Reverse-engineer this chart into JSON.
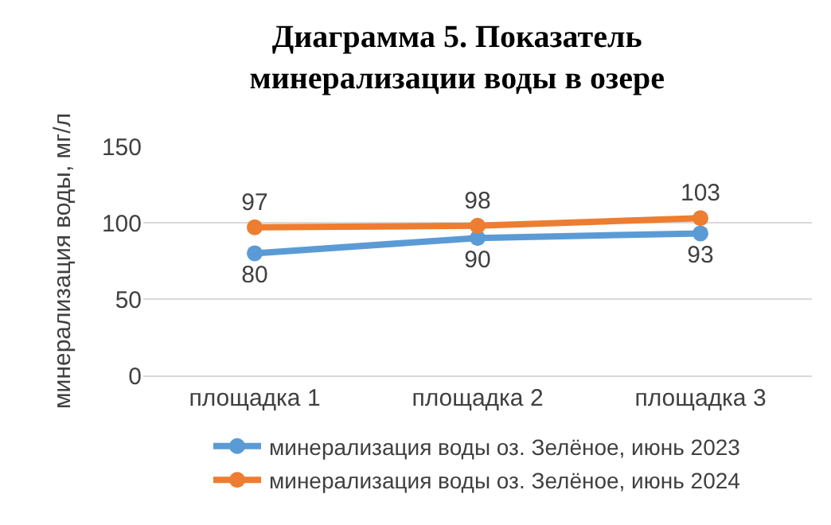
{
  "chart_data": {
    "type": "line",
    "title": "Диаграмма 5. Показатель\nминерализации воды в озере",
    "ylabel": "минерализация воды, мг/л",
    "categories": [
      "площадка 1",
      "площадка 2",
      "площадка 3"
    ],
    "series": [
      {
        "name": "минерализация воды оз. Зелёное, июнь 2023",
        "color": "#5b9bd5",
        "values": [
          80,
          90,
          93
        ]
      },
      {
        "name": "минерализация воды оз. Зелёное, июнь 2024",
        "color": "#ed7d31",
        "values": [
          97,
          98,
          103
        ]
      }
    ],
    "ylim": [
      0,
      150
    ],
    "yticks": [
      0,
      50,
      100,
      150
    ],
    "grid": "y",
    "legend": "bottom",
    "marker": "circle",
    "line_style": "solid",
    "data_labels": true
  }
}
